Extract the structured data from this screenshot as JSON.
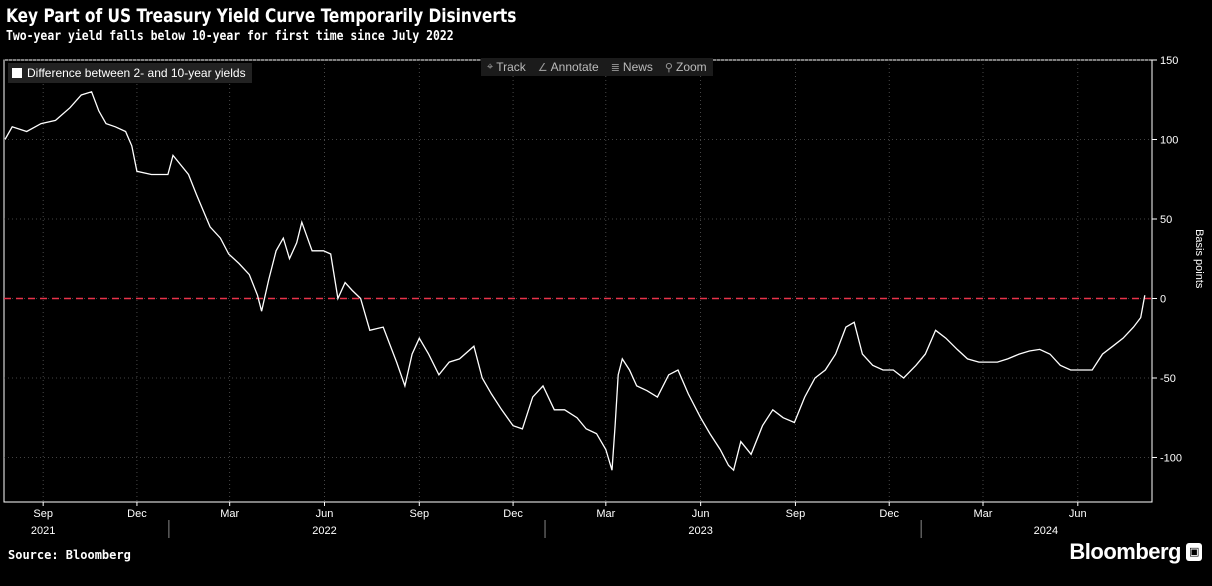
{
  "header": {
    "title": "Key Part of US Treasury Yield Curve Temporarily Disinverts",
    "subtitle": "Two-year yield falls below 10-year for first time since July 2022"
  },
  "toolbar": {
    "items": [
      {
        "icon": "crosshair-icon",
        "label": "Track"
      },
      {
        "icon": "pencil-icon",
        "label": "Annotate"
      },
      {
        "icon": "news-icon",
        "label": "News"
      },
      {
        "icon": "magnifier-icon",
        "label": "Zoom"
      }
    ]
  },
  "footer": {
    "source": "Source: Bloomberg",
    "brand": "Bloomberg"
  },
  "chart_data": {
    "type": "line",
    "legend": {
      "label": "Difference between 2- and 10-year yields",
      "placement": "top-left"
    },
    "ylabel": "Basis points",
    "ylim": [
      -128,
      150
    ],
    "yticks": [
      150,
      100,
      50,
      0,
      -50,
      -100
    ],
    "grid": true,
    "reference_line": {
      "y": 0,
      "color": "#e8334a",
      "style": "dashed"
    },
    "xlim": [
      "2021-07-25",
      "2024-08-12"
    ],
    "xticks": [
      {
        "date": "2021-09-01",
        "label": "Sep"
      },
      {
        "date": "2021-12-01",
        "label": "Dec"
      },
      {
        "date": "2022-03-01",
        "label": "Mar"
      },
      {
        "date": "2022-06-01",
        "label": "Jun"
      },
      {
        "date": "2022-09-01",
        "label": "Sep"
      },
      {
        "date": "2022-12-01",
        "label": "Dec"
      },
      {
        "date": "2023-03-01",
        "label": "Mar"
      },
      {
        "date": "2023-06-01",
        "label": "Jun"
      },
      {
        "date": "2023-09-01",
        "label": "Sep"
      },
      {
        "date": "2023-12-01",
        "label": "Dec"
      },
      {
        "date": "2024-03-01",
        "label": "Mar"
      },
      {
        "date": "2024-06-01",
        "label": "Jun"
      }
    ],
    "year_labels": [
      {
        "date": "2021-09-01",
        "label": "2021"
      },
      {
        "date": "2022-06-01",
        "label": "2022"
      },
      {
        "date": "2023-06-01",
        "label": "2023"
      },
      {
        "date": "2024-05-01",
        "label": "2024"
      }
    ],
    "year_dividers": [
      "2022-01-01",
      "2023-01-01",
      "2024-01-01"
    ],
    "series": [
      {
        "name": "Difference between 2- and 10-year yields",
        "color": "#ffffff",
        "points": [
          [
            "2021-07-26",
            100
          ],
          [
            "2021-08-02",
            108
          ],
          [
            "2021-08-16",
            105
          ],
          [
            "2021-08-30",
            110
          ],
          [
            "2021-09-13",
            112
          ],
          [
            "2021-09-27",
            120
          ],
          [
            "2021-10-08",
            128
          ],
          [
            "2021-10-18",
            130
          ],
          [
            "2021-10-25",
            118
          ],
          [
            "2021-11-01",
            110
          ],
          [
            "2021-11-10",
            108
          ],
          [
            "2021-11-20",
            105
          ],
          [
            "2021-11-26",
            96
          ],
          [
            "2021-12-01",
            80
          ],
          [
            "2021-12-15",
            78
          ],
          [
            "2021-12-31",
            78
          ],
          [
            "2022-01-05",
            90
          ],
          [
            "2022-01-20",
            78
          ],
          [
            "2022-01-28",
            65
          ],
          [
            "2022-02-10",
            45
          ],
          [
            "2022-02-20",
            38
          ],
          [
            "2022-02-28",
            28
          ],
          [
            "2022-03-10",
            22
          ],
          [
            "2022-03-20",
            15
          ],
          [
            "2022-03-28",
            2
          ],
          [
            "2022-04-01",
            -8
          ],
          [
            "2022-04-08",
            12
          ],
          [
            "2022-04-15",
            30
          ],
          [
            "2022-04-22",
            38
          ],
          [
            "2022-04-28",
            25
          ],
          [
            "2022-05-05",
            35
          ],
          [
            "2022-05-10",
            48
          ],
          [
            "2022-05-20",
            30
          ],
          [
            "2022-05-31",
            30
          ],
          [
            "2022-06-07",
            28
          ],
          [
            "2022-06-14",
            0
          ],
          [
            "2022-06-21",
            10
          ],
          [
            "2022-06-28",
            5
          ],
          [
            "2022-07-06",
            0
          ],
          [
            "2022-07-15",
            -20
          ],
          [
            "2022-07-28",
            -18
          ],
          [
            "2022-08-10",
            -40
          ],
          [
            "2022-08-18",
            -55
          ],
          [
            "2022-08-25",
            -35
          ],
          [
            "2022-09-01",
            -25
          ],
          [
            "2022-09-10",
            -35
          ],
          [
            "2022-09-20",
            -48
          ],
          [
            "2022-09-30",
            -40
          ],
          [
            "2022-10-10",
            -38
          ],
          [
            "2022-10-24",
            -30
          ],
          [
            "2022-11-01",
            -50
          ],
          [
            "2022-11-10",
            -60
          ],
          [
            "2022-11-20",
            -70
          ],
          [
            "2022-12-01",
            -80
          ],
          [
            "2022-12-10",
            -82
          ],
          [
            "2022-12-20",
            -62
          ],
          [
            "2022-12-30",
            -55
          ],
          [
            "2023-01-10",
            -70
          ],
          [
            "2023-01-20",
            -70
          ],
          [
            "2023-02-01",
            -75
          ],
          [
            "2023-02-10",
            -82
          ],
          [
            "2023-02-20",
            -85
          ],
          [
            "2023-03-01",
            -95
          ],
          [
            "2023-03-07",
            -108
          ],
          [
            "2023-03-10",
            -80
          ],
          [
            "2023-03-13",
            -48
          ],
          [
            "2023-03-17",
            -38
          ],
          [
            "2023-03-24",
            -45
          ],
          [
            "2023-03-31",
            -55
          ],
          [
            "2023-04-10",
            -58
          ],
          [
            "2023-04-20",
            -62
          ],
          [
            "2023-05-01",
            -48
          ],
          [
            "2023-05-10",
            -45
          ],
          [
            "2023-05-20",
            -60
          ],
          [
            "2023-06-01",
            -75
          ],
          [
            "2023-06-10",
            -85
          ],
          [
            "2023-06-20",
            -95
          ],
          [
            "2023-06-28",
            -105
          ],
          [
            "2023-07-03",
            -108
          ],
          [
            "2023-07-10",
            -90
          ],
          [
            "2023-07-20",
            -98
          ],
          [
            "2023-07-31",
            -80
          ],
          [
            "2023-08-10",
            -70
          ],
          [
            "2023-08-20",
            -75
          ],
          [
            "2023-08-31",
            -78
          ],
          [
            "2023-09-10",
            -62
          ],
          [
            "2023-09-20",
            -50
          ],
          [
            "2023-09-30",
            -45
          ],
          [
            "2023-10-10",
            -35
          ],
          [
            "2023-10-20",
            -18
          ],
          [
            "2023-10-28",
            -15
          ],
          [
            "2023-11-05",
            -35
          ],
          [
            "2023-11-15",
            -42
          ],
          [
            "2023-11-25",
            -45
          ],
          [
            "2023-12-05",
            -45
          ],
          [
            "2023-12-15",
            -50
          ],
          [
            "2023-12-27",
            -42
          ],
          [
            "2024-01-05",
            -35
          ],
          [
            "2024-01-15",
            -20
          ],
          [
            "2024-01-25",
            -25
          ],
          [
            "2024-02-05",
            -32
          ],
          [
            "2024-02-15",
            -38
          ],
          [
            "2024-02-26",
            -40
          ],
          [
            "2024-03-05",
            -40
          ],
          [
            "2024-03-15",
            -40
          ],
          [
            "2024-03-25",
            -38
          ],
          [
            "2024-04-05",
            -35
          ],
          [
            "2024-04-15",
            -33
          ],
          [
            "2024-04-25",
            -32
          ],
          [
            "2024-05-05",
            -35
          ],
          [
            "2024-05-15",
            -42
          ],
          [
            "2024-05-25",
            -45
          ],
          [
            "2024-06-05",
            -45
          ],
          [
            "2024-06-15",
            -45
          ],
          [
            "2024-06-25",
            -35
          ],
          [
            "2024-07-05",
            -30
          ],
          [
            "2024-07-15",
            -25
          ],
          [
            "2024-07-25",
            -18
          ],
          [
            "2024-08-01",
            -12
          ],
          [
            "2024-08-05",
            2
          ]
        ]
      }
    ]
  }
}
